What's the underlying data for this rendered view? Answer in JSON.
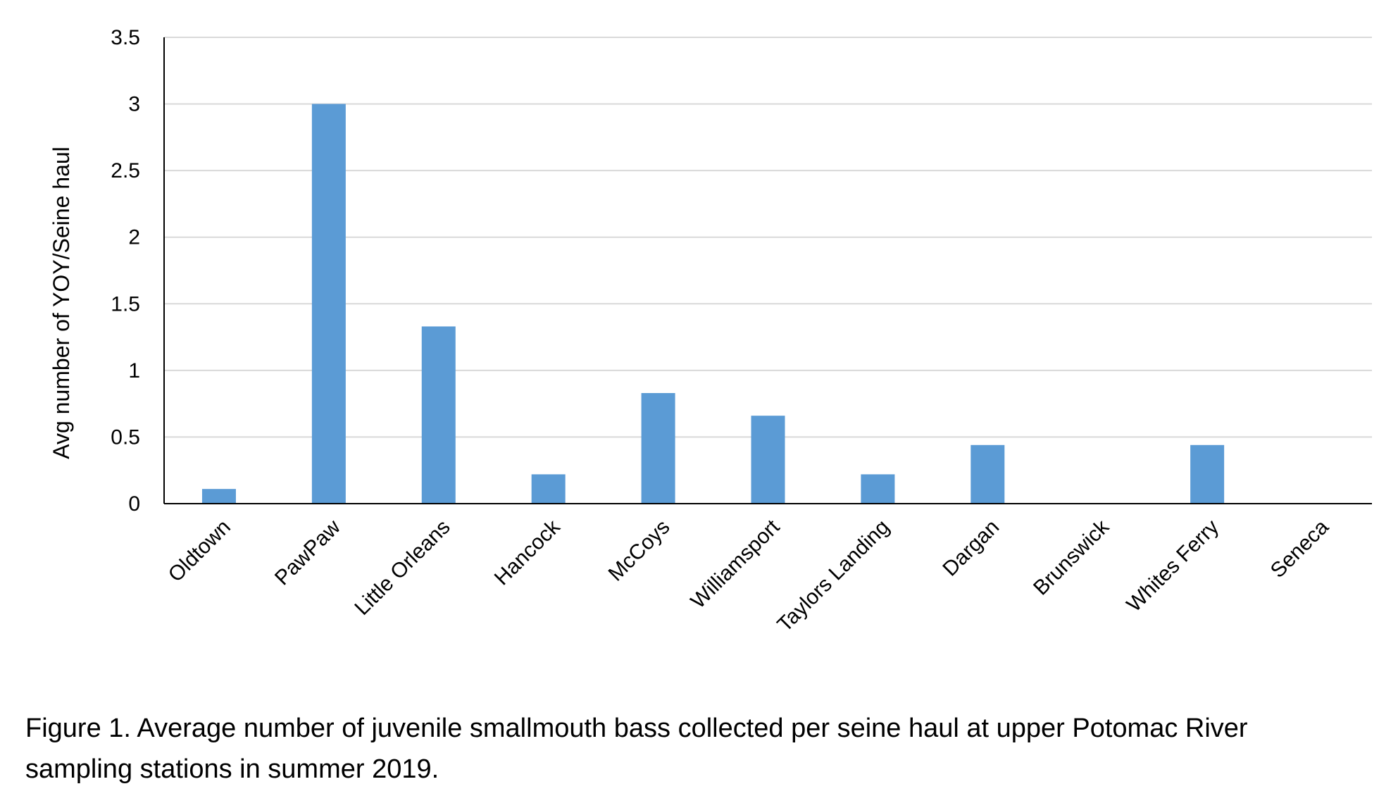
{
  "chart_data": {
    "type": "bar",
    "categories": [
      "Oldtown",
      "PawPaw",
      "Little Orleans",
      "Hancock",
      "McCoys",
      "Williamsport",
      "Taylors Landing",
      "Dargan",
      "Brunswick",
      "Whites Ferry",
      "Seneca"
    ],
    "values": [
      0.11,
      3.0,
      1.33,
      0.22,
      0.83,
      0.66,
      0.22,
      0.44,
      0,
      0.44,
      0
    ],
    "ylabel": "Avg number of YOY/Seine haul",
    "xlabel": "",
    "ylim": [
      0,
      3.5
    ],
    "yticks": [
      "0",
      "0.5",
      "1",
      "1.5",
      "2",
      "2.5",
      "3",
      "3.5"
    ],
    "bar_color": "#5b9bd5",
    "gridlines": true
  },
  "caption": {
    "line1": "Figure 1.  Average number of juvenile smallmouth bass collected per seine haul at upper Potomac River",
    "line2": "sampling stations in summer 2019."
  }
}
